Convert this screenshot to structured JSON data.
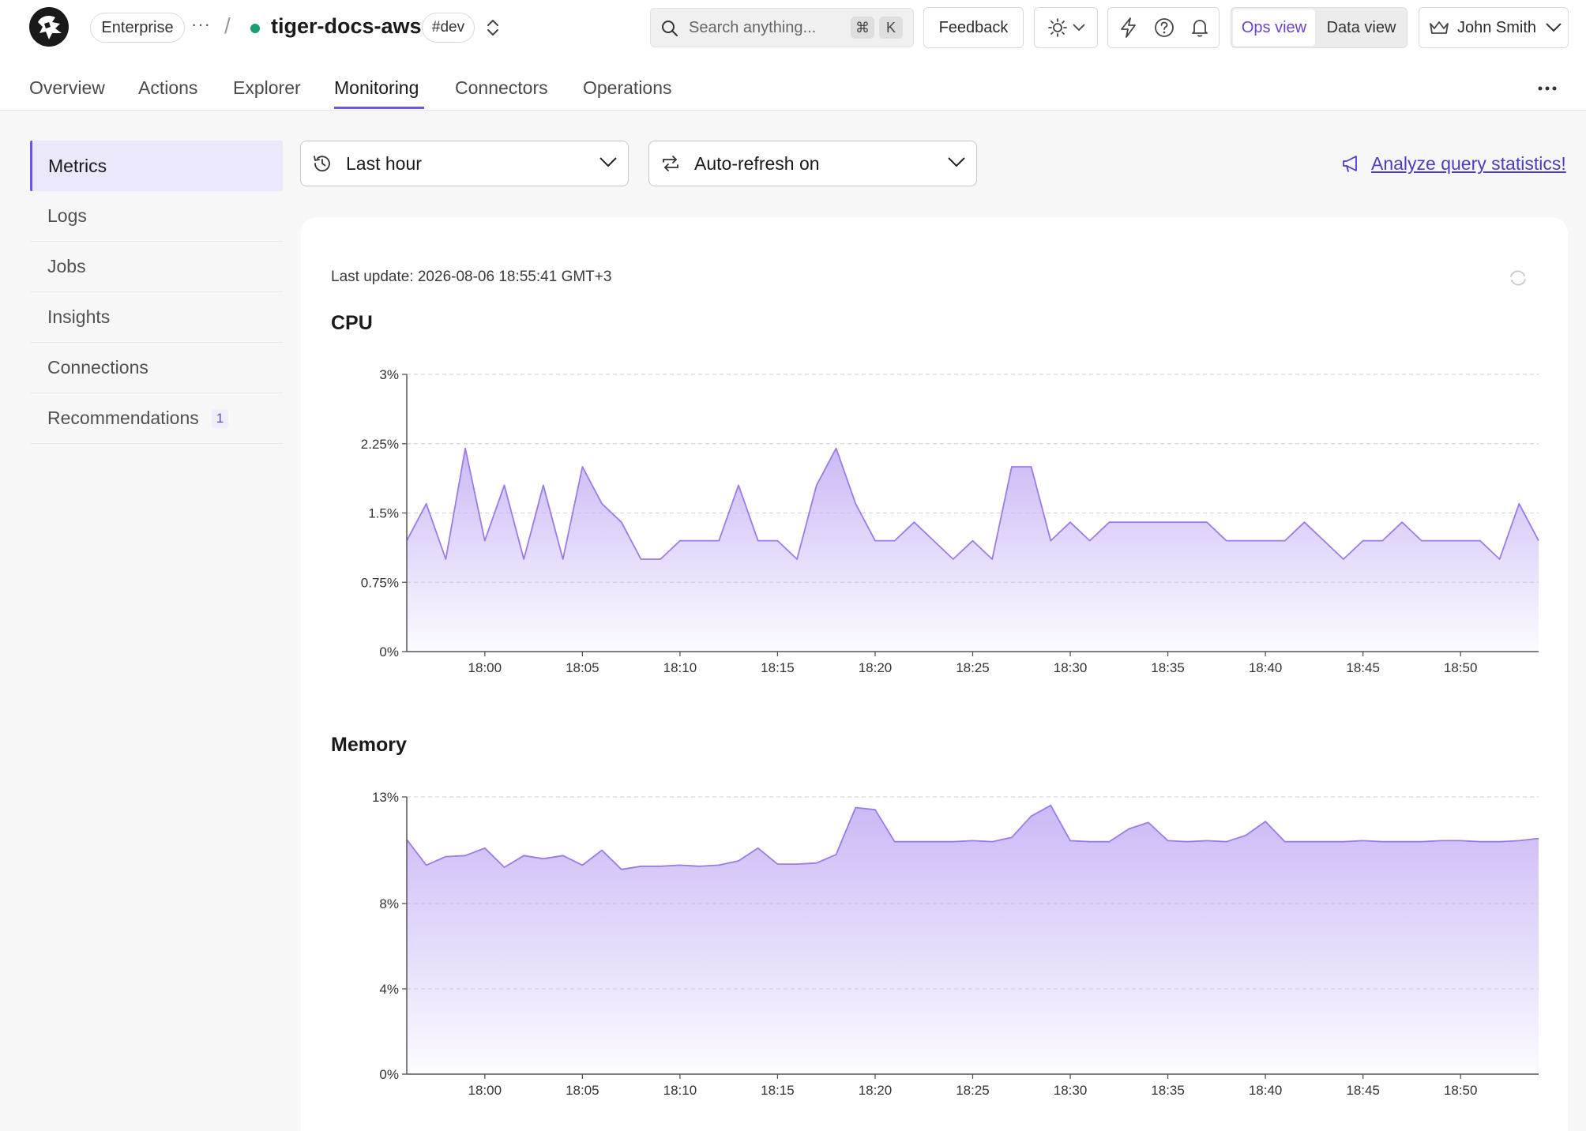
{
  "header": {
    "plan_badge": "Enterprise",
    "more_label": "···",
    "separator": "/",
    "service_name": "tiger-docs-aws",
    "env_badge": "#dev",
    "search_placeholder": "Search anything...",
    "search_shortcut_cmd": "⌘",
    "search_shortcut_key": "K",
    "feedback_label": "Feedback",
    "view_ops": "Ops view",
    "view_data": "Data view",
    "user_name": "John Smith",
    "status_color": "#1a9e6e"
  },
  "tabs": [
    {
      "label": "Overview"
    },
    {
      "label": "Actions"
    },
    {
      "label": "Explorer"
    },
    {
      "label": "Monitoring"
    },
    {
      "label": "Connectors"
    },
    {
      "label": "Operations"
    }
  ],
  "sidebar": {
    "items": [
      {
        "label": "Metrics"
      },
      {
        "label": "Logs"
      },
      {
        "label": "Jobs"
      },
      {
        "label": "Insights"
      },
      {
        "label": "Connections"
      },
      {
        "label": "Recommendations",
        "badge": "1"
      }
    ]
  },
  "controls": {
    "time_range": "Last hour",
    "refresh": "Auto-refresh on",
    "analyze_link": "Analyze query statistics!"
  },
  "card": {
    "last_update": "Last update: 2026-08-06 18:55:41 GMT+3"
  },
  "colors": {
    "accent": "#6d55e8",
    "series_line": "#9b7be8",
    "series_fill": "#c9b5f5"
  },
  "chart_data": [
    {
      "type": "area",
      "title": "CPU",
      "ylim": [
        0,
        3
      ],
      "yticks": [
        "0%",
        "0.75%",
        "1.5%",
        "2.25%",
        "3%"
      ],
      "xticks": [
        "18:00",
        "18:05",
        "18:10",
        "18:15",
        "18:20",
        "18:25",
        "18:30",
        "18:35",
        "18:40",
        "18:45",
        "18:50"
      ],
      "grid": true,
      "values": [
        1.2,
        1.6,
        1.0,
        2.2,
        1.2,
        1.8,
        1.0,
        1.8,
        1.0,
        2.0,
        1.6,
        1.4,
        1.0,
        1.0,
        1.2,
        1.2,
        1.2,
        1.8,
        1.2,
        1.2,
        1.0,
        1.8,
        2.2,
        1.6,
        1.2,
        1.2,
        1.4,
        1.2,
        1.0,
        1.2,
        1.0,
        2.0,
        2.0,
        1.2,
        1.4,
        1.2,
        1.4,
        1.4,
        1.4,
        1.4,
        1.4,
        1.4,
        1.2,
        1.2,
        1.2,
        1.2,
        1.4,
        1.2,
        1.0,
        1.2,
        1.2,
        1.4,
        1.2,
        1.2,
        1.2,
        1.2,
        1.0,
        1.6,
        1.2
      ]
    },
    {
      "type": "area",
      "title": "Memory",
      "ylim": [
        0,
        13
      ],
      "yticks": [
        "0%",
        "4%",
        "8%",
        "13%"
      ],
      "ytick_values": [
        0,
        4,
        8,
        13
      ],
      "xticks": [
        "18:00",
        "18:05",
        "18:10",
        "18:15",
        "18:20",
        "18:25",
        "18:30",
        "18:35",
        "18:40",
        "18:45",
        "18:50"
      ],
      "grid": true,
      "values": [
        11.0,
        9.8,
        10.2,
        10.25,
        10.6,
        9.7,
        10.25,
        10.1,
        10.25,
        9.8,
        10.5,
        9.6,
        9.75,
        9.75,
        9.8,
        9.75,
        9.8,
        10.0,
        10.6,
        9.85,
        9.85,
        9.9,
        10.3,
        12.5,
        12.4,
        10.9,
        10.9,
        10.9,
        10.9,
        10.95,
        10.9,
        11.1,
        12.1,
        12.6,
        10.95,
        10.9,
        10.9,
        11.5,
        11.8,
        10.95,
        10.9,
        10.95,
        10.9,
        11.2,
        11.85,
        10.9,
        10.9,
        10.9,
        10.9,
        10.95,
        10.9,
        10.9,
        10.9,
        10.95,
        10.95,
        10.9,
        10.9,
        10.95,
        11.05
      ]
    }
  ]
}
